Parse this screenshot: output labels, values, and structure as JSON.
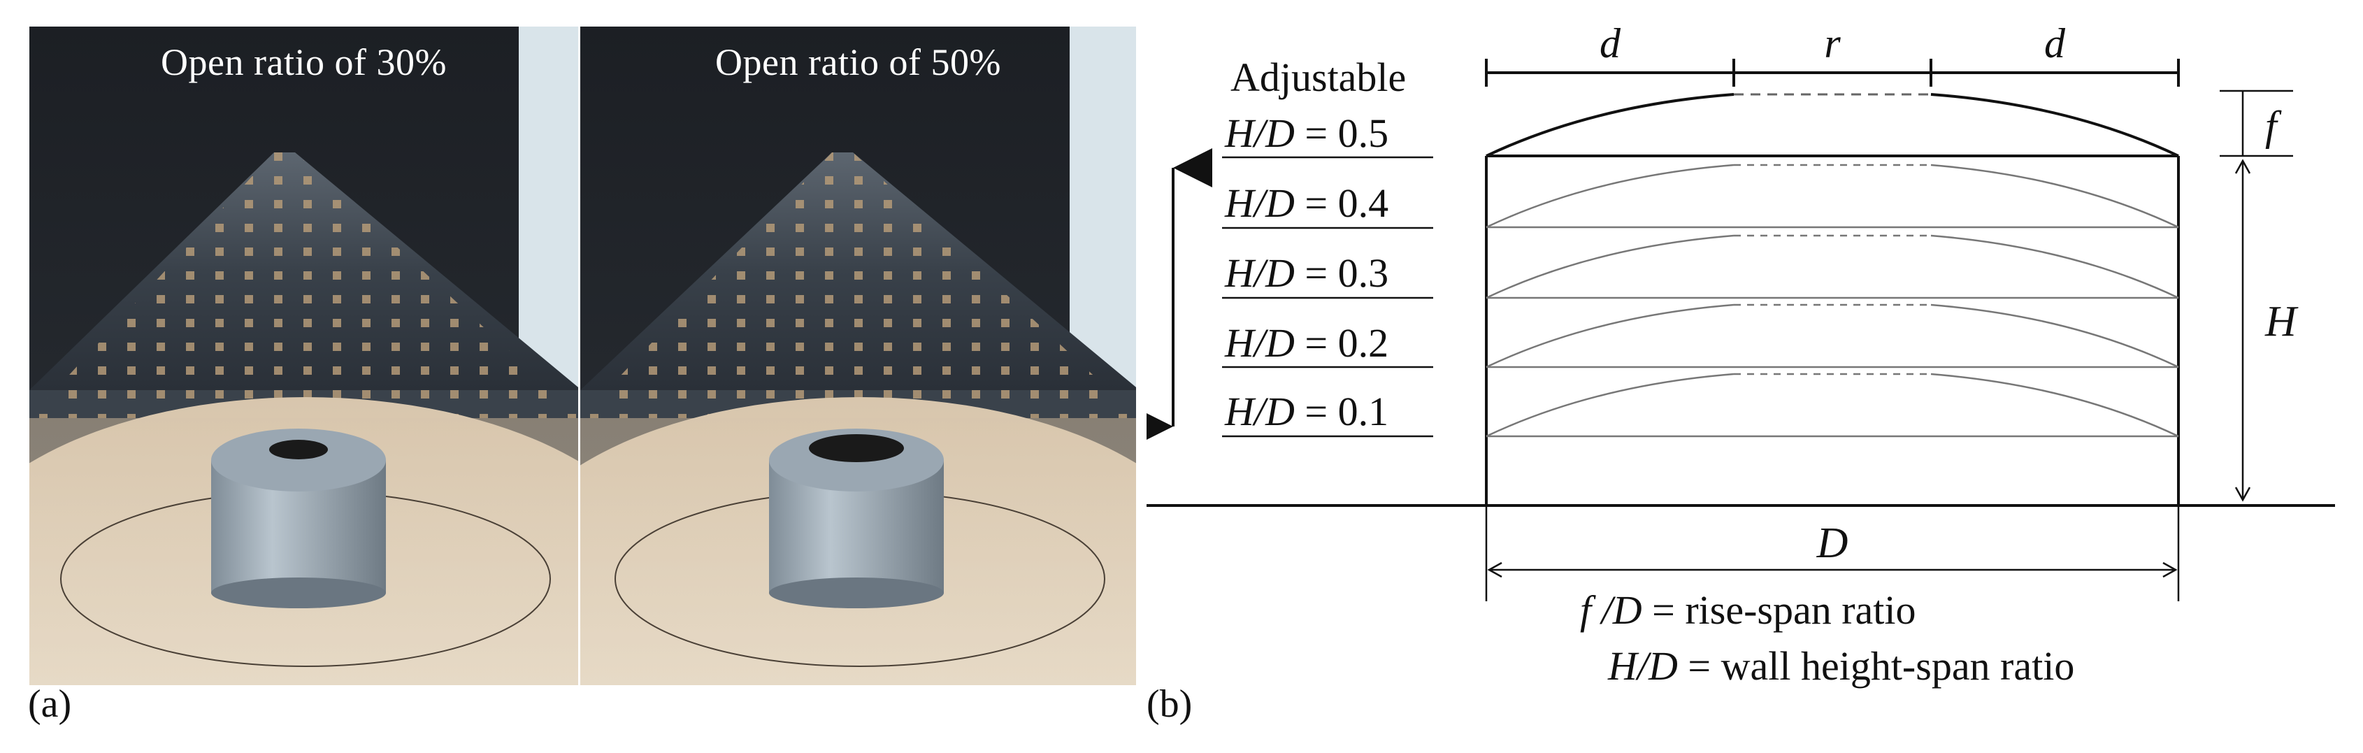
{
  "panel_a": {
    "label": "(a)",
    "photos": [
      {
        "caption": "Open ratio of 30%",
        "open_ratio": 0.3
      },
      {
        "caption": "Open ratio of 50%",
        "open_ratio": 0.5
      }
    ]
  },
  "panel_b": {
    "label": "(b)",
    "adjustable_label": "Adjustable",
    "top_dimensions": {
      "d_left": "d",
      "r": "r",
      "d_right": "d"
    },
    "rise_label": "f",
    "height_label": "H",
    "span_label": "D",
    "levels": [
      {
        "var": "H/D",
        "eq": "= 0.5"
      },
      {
        "var": "H/D",
        "eq": "= 0.4"
      },
      {
        "var": "H/D",
        "eq": "= 0.3"
      },
      {
        "var": "H/D",
        "eq": "= 0.2"
      },
      {
        "var": "H/D",
        "eq": "= 0.1"
      }
    ],
    "legend": [
      {
        "var": "f /D",
        "desc": "= rise-span ratio"
      },
      {
        "var": "H/D",
        "desc": "= wall height-span ratio"
      }
    ]
  }
}
